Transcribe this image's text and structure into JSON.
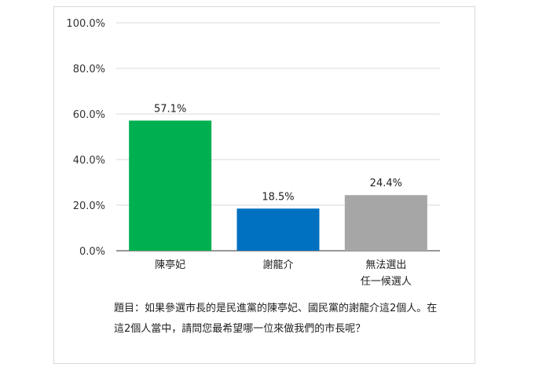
{
  "chart_data": {
    "type": "bar",
    "categories": [
      "陳亭妃",
      "謝龍介",
      [
        "無法選出",
        "任一候選人"
      ]
    ],
    "values": [
      57.1,
      18.5,
      24.4
    ],
    "value_labels": [
      "57.1%",
      "18.5%",
      "24.4%"
    ],
    "colors": [
      "#00b050",
      "#0070c0",
      "#a6a6a6"
    ],
    "yticks": [
      "0.0%",
      "20.0%",
      "40.0%",
      "60.0%",
      "80.0%",
      "100.0%"
    ],
    "ylim": [
      0,
      100
    ],
    "grid": true
  },
  "question": "題目：如果參選市長的是民進黨的陳亭妃、國民黨的謝龍介這2個人。在這2個人當中，請問您最希望哪一位來做我們的市長呢？"
}
